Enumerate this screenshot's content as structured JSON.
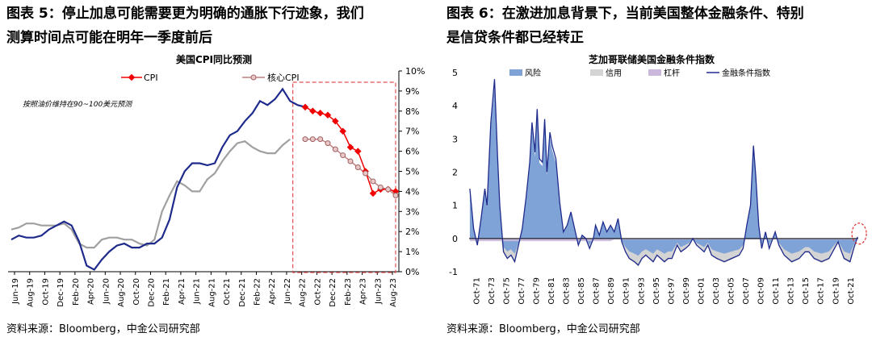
{
  "left": {
    "title_line1": "图表 5：停止加息可能需要更为明确的通胀下行迹象，我们",
    "title_line2": "测算时间点可能在明年一季度前后",
    "source": "资料来源：Bloomberg，中金公司研究部",
    "chart_data": {
      "type": "line",
      "title": "美国CPI同比预测",
      "annotation": "按照油价维持在90~100美元预测",
      "x_ticks": [
        "Jun-19",
        "Aug-19",
        "Oct-19",
        "Dec-19",
        "Feb-20",
        "Apr-20",
        "Jun-20",
        "Aug-20",
        "Oct-20",
        "Dec-20",
        "Feb-21",
        "Apr-21",
        "Jun-21",
        "Aug-21",
        "Oct-21",
        "Dec-21",
        "Feb-22",
        "Apr-22",
        "Jun-22",
        "Aug-22",
        "Oct-22",
        "Dec-22",
        "Feb-23",
        "Apr-23",
        "Jun-23",
        "Aug-23"
      ],
      "y_ticks": [
        "0%",
        "1%",
        "2%",
        "3%",
        "4%",
        "5%",
        "6%",
        "7%",
        "8%",
        "9%",
        "10%"
      ],
      "ylim": [
        0,
        10
      ],
      "y_axis_side": "right",
      "legend": [
        "CPI",
        "核心CPI"
      ],
      "series": [
        {
          "name": "CPI",
          "color": "#1f2b8c",
          "values": [
            1.6,
            1.8,
            1.7,
            1.7,
            1.8,
            2.1,
            2.3,
            2.5,
            2.3,
            1.5,
            0.3,
            0.1,
            0.6,
            1.0,
            1.3,
            1.4,
            1.2,
            1.2,
            1.4,
            1.4,
            1.7,
            2.6,
            4.2,
            5.0,
            5.4,
            5.4,
            5.3,
            5.4,
            6.2,
            6.8,
            7.0,
            7.5,
            7.9,
            8.5,
            8.3,
            8.6,
            9.1,
            8.5,
            8.3,
            8.2
          ]
        },
        {
          "name": "CPI_forecast",
          "color": "#f00000",
          "values": [
            null,
            null,
            null,
            null,
            null,
            null,
            null,
            null,
            null,
            null,
            null,
            null,
            null,
            null,
            null,
            null,
            null,
            null,
            null,
            null,
            null,
            null,
            null,
            null,
            null,
            null,
            null,
            null,
            null,
            null,
            null,
            null,
            null,
            null,
            null,
            null,
            null,
            null,
            null,
            8.2,
            8.0,
            7.9,
            7.8,
            7.5,
            7.0,
            6.2,
            6.0,
            5.0,
            3.9,
            4.1,
            4.1,
            4.0
          ]
        },
        {
          "name": "核心CPI",
          "color": "#a0a0a0",
          "values": [
            2.1,
            2.2,
            2.4,
            2.4,
            2.3,
            2.3,
            2.3,
            2.4,
            2.1,
            1.4,
            1.2,
            1.2,
            1.6,
            1.7,
            1.7,
            1.6,
            1.6,
            1.4,
            1.3,
            1.6,
            3.0,
            3.8,
            4.5,
            4.3,
            4.0,
            4.0,
            4.6,
            4.9,
            5.5,
            6.0,
            6.4,
            6.5,
            6.2,
            6.0,
            5.9,
            5.9,
            6.3,
            6.6
          ]
        },
        {
          "name": "核心CPI_forecast",
          "color": "#c08080",
          "values": [
            null,
            null,
            null,
            null,
            null,
            null,
            null,
            null,
            null,
            null,
            null,
            null,
            null,
            null,
            null,
            null,
            null,
            null,
            null,
            null,
            null,
            null,
            null,
            null,
            null,
            null,
            null,
            null,
            null,
            null,
            null,
            null,
            null,
            null,
            null,
            null,
            null,
            null,
            null,
            6.6,
            6.6,
            6.6,
            6.4,
            6.1,
            5.8,
            5.5,
            5.2,
            4.9,
            4.5,
            4.2,
            4.1,
            3.8
          ]
        }
      ],
      "forecast_box": "dashed red rectangle from Aug-22 to Aug-23"
    }
  },
  "right": {
    "title_line1": "图表 6：在激进加息背景下，当前美国整体金融条件、特别",
    "title_line2": "是信贷条件都已经转正",
    "source": "资料来源：Bloomberg，中金公司研究部",
    "chart_data": {
      "type": "area",
      "title": "芝加哥联储美国金融条件指数",
      "legend": [
        "风险",
        "信用",
        "杠杆",
        "金融条件指数"
      ],
      "colors": {
        "风险": "#7fa3d6",
        "信用": "#d4d4d4",
        "杠杆": "#c9b8dc",
        "金融条件指数": "#1f2b8c"
      },
      "x_ticks": [
        "Oct-71",
        "Oct-73",
        "Oct-75",
        "Oct-77",
        "Oct-79",
        "Oct-81",
        "Oct-83",
        "Oct-85",
        "Oct-87",
        "Oct-89",
        "Oct-91",
        "Oct-93",
        "Oct-95",
        "Oct-97",
        "Oct-99",
        "Oct-01",
        "Oct-03",
        "Oct-05",
        "Oct-07",
        "Oct-09",
        "Oct-11",
        "Oct-13",
        "Oct-15",
        "Oct-17",
        "Oct-19",
        "Oct-21"
      ],
      "y_ticks": [
        "-1",
        "0",
        "1",
        "2",
        "3",
        "4",
        "5"
      ],
      "ylim": [
        -1,
        5
      ],
      "nfci_points": [
        [
          1971.0,
          1.5
        ],
        [
          1971.5,
          0.3
        ],
        [
          1972.0,
          -0.2
        ],
        [
          1972.5,
          0.6
        ],
        [
          1973.0,
          1.5
        ],
        [
          1973.3,
          1.0
        ],
        [
          1973.8,
          3.5
        ],
        [
          1974.3,
          4.8
        ],
        [
          1974.7,
          2.5
        ],
        [
          1975.0,
          1.0
        ],
        [
          1975.5,
          -0.4
        ],
        [
          1976.0,
          -0.6
        ],
        [
          1976.5,
          -0.5
        ],
        [
          1977.0,
          -0.7
        ],
        [
          1977.5,
          -0.2
        ],
        [
          1978.0,
          0.3
        ],
        [
          1978.5,
          1.2
        ],
        [
          1979.0,
          2.3
        ],
        [
          1979.3,
          3.5
        ],
        [
          1979.7,
          2.6
        ],
        [
          1980.0,
          3.9
        ],
        [
          1980.3,
          2.4
        ],
        [
          1980.7,
          2.3
        ],
        [
          1981.0,
          3.6
        ],
        [
          1981.3,
          2.0
        ],
        [
          1981.7,
          3.2
        ],
        [
          1982.0,
          2.8
        ],
        [
          1982.5,
          2.4
        ],
        [
          1983.0,
          1.1
        ],
        [
          1983.5,
          0.2
        ],
        [
          1984.0,
          0.4
        ],
        [
          1984.5,
          0.8
        ],
        [
          1985.0,
          0.3
        ],
        [
          1985.5,
          -0.2
        ],
        [
          1986.0,
          0.1
        ],
        [
          1986.5,
          0.0
        ],
        [
          1987.0,
          -0.3
        ],
        [
          1987.5,
          0.0
        ],
        [
          1987.8,
          0.4
        ],
        [
          1988.3,
          0.1
        ],
        [
          1988.8,
          0.5
        ],
        [
          1989.3,
          0.2
        ],
        [
          1989.8,
          0.4
        ],
        [
          1990.3,
          0.2
        ],
        [
          1990.8,
          0.6
        ],
        [
          1991.3,
          -0.1
        ],
        [
          1991.8,
          -0.4
        ],
        [
          1992.3,
          -0.6
        ],
        [
          1993.0,
          -0.7
        ],
        [
          1993.5,
          -0.8
        ],
        [
          1994.0,
          -0.6
        ],
        [
          1994.5,
          -0.5
        ],
        [
          1995.0,
          -0.6
        ],
        [
          1995.5,
          -0.7
        ],
        [
          1996.0,
          -0.5
        ],
        [
          1996.5,
          -0.6
        ],
        [
          1997.0,
          -0.7
        ],
        [
          1997.5,
          -0.6
        ],
        [
          1998.0,
          -0.6
        ],
        [
          1998.7,
          -0.2
        ],
        [
          1999.2,
          -0.4
        ],
        [
          1999.8,
          -0.3
        ],
        [
          2000.3,
          -0.2
        ],
        [
          2000.8,
          0.0
        ],
        [
          2001.3,
          -0.2
        ],
        [
          2001.8,
          -0.3
        ],
        [
          2002.3,
          -0.4
        ],
        [
          2002.8,
          -0.2
        ],
        [
          2003.3,
          -0.5
        ],
        [
          2004.0,
          -0.6
        ],
        [
          2005.0,
          -0.7
        ],
        [
          2006.0,
          -0.6
        ],
        [
          2007.0,
          -0.5
        ],
        [
          2007.5,
          -0.3
        ],
        [
          2008.0,
          0.4
        ],
        [
          2008.5,
          1.0
        ],
        [
          2008.9,
          2.8
        ],
        [
          2009.2,
          1.9
        ],
        [
          2009.6,
          0.4
        ],
        [
          2010.0,
          -0.3
        ],
        [
          2010.5,
          0.2
        ],
        [
          2011.0,
          -0.3
        ],
        [
          2011.8,
          0.2
        ],
        [
          2012.3,
          -0.2
        ],
        [
          2013.0,
          -0.5
        ],
        [
          2014.0,
          -0.7
        ],
        [
          2015.0,
          -0.6
        ],
        [
          2015.8,
          -0.4
        ],
        [
          2016.3,
          -0.4
        ],
        [
          2017.0,
          -0.6
        ],
        [
          2018.0,
          -0.7
        ],
        [
          2019.0,
          -0.6
        ],
        [
          2020.2,
          -0.1
        ],
        [
          2020.5,
          -0.3
        ],
        [
          2021.0,
          -0.6
        ],
        [
          2021.8,
          -0.7
        ],
        [
          2022.3,
          -0.3
        ],
        [
          2022.8,
          0.05
        ]
      ],
      "highlight": "dashed red ellipse at the latest value"
    }
  }
}
